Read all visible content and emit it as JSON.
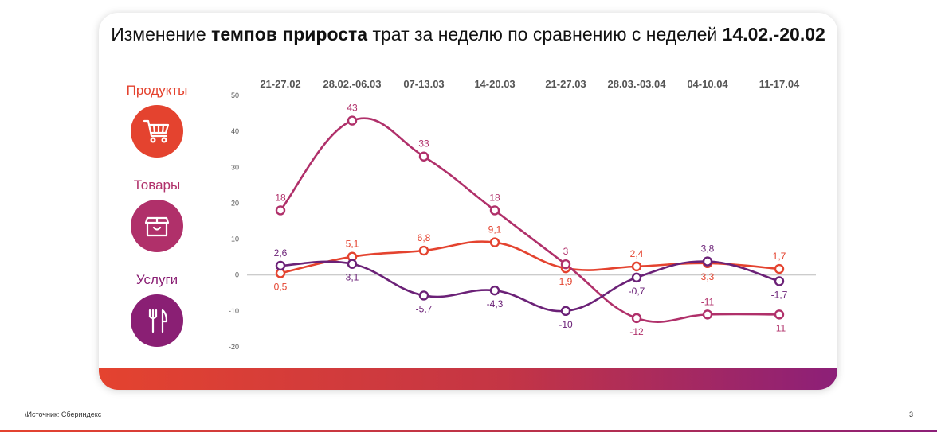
{
  "title": {
    "part1": "Изменение ",
    "bold1": "темпов прироста",
    "part2": " трат за неделю по сравнению с неделей ",
    "bold2": "14.02.-20.02"
  },
  "categories": [
    {
      "label": "Продукты",
      "icon": "cart-icon",
      "color": "#e4432f"
    },
    {
      "label": "Товары",
      "icon": "box-icon",
      "color": "#b0306a"
    },
    {
      "label": "Услуги",
      "icon": "fork-knife-icon",
      "color": "#8a1f74"
    }
  ],
  "footer": {
    "source": "\\Источник: Сбериндекс",
    "page": "3"
  },
  "colors": {
    "accent_red": "#e4432f",
    "accent_magenta": "#b0306a",
    "accent_purple": "#6b2177"
  },
  "chart_data": {
    "type": "line",
    "title": "",
    "categories": [
      "21-27.02",
      "28.02.-06.03",
      "07-13.03",
      "14-20.03",
      "21-27.03",
      "28.03.-03.04",
      "04-10.04",
      "11-17.04"
    ],
    "ylim": [
      -20,
      50
    ],
    "yticks": [
      50,
      40,
      30,
      20,
      10,
      0,
      -10,
      -20
    ],
    "ytick_labels": [
      "50",
      "40",
      "30",
      "20",
      "10",
      "0",
      "-10",
      "-20"
    ],
    "grid": false,
    "series": [
      {
        "name": "Продукты",
        "color": "#e4432f",
        "values": [
          0.5,
          5.1,
          6.8,
          9.1,
          1.9,
          2.4,
          3.3,
          1.7
        ],
        "labels": [
          "0,5",
          "5,1",
          "6,8",
          "9,1",
          "1,9",
          "2,4",
          "3,3",
          "1,7"
        ],
        "label_pos": [
          "below",
          "above",
          "above",
          "above",
          "below",
          "above",
          "below",
          "above"
        ]
      },
      {
        "name": "Товары",
        "color": "#b0306a",
        "values": [
          18,
          43,
          33,
          18,
          3,
          -12,
          -11,
          -11
        ],
        "labels": [
          "18",
          "43",
          "33",
          "18",
          "3",
          "-12",
          "-11",
          "-11"
        ],
        "label_pos": [
          "above",
          "above",
          "above",
          "above",
          "above",
          "below",
          "above",
          "below"
        ]
      },
      {
        "name": "Услуги",
        "color": "#6b2177",
        "values": [
          2.6,
          3.1,
          -5.7,
          -4.3,
          -10,
          -0.7,
          3.8,
          -1.7
        ],
        "labels": [
          "2,6",
          "3,1",
          "-5,7",
          "-4,3",
          "-10",
          "-0,7",
          "3,8",
          "-1,7"
        ],
        "label_pos": [
          "above",
          "below",
          "below",
          "below",
          "below",
          "below",
          "above",
          "below"
        ]
      }
    ]
  }
}
